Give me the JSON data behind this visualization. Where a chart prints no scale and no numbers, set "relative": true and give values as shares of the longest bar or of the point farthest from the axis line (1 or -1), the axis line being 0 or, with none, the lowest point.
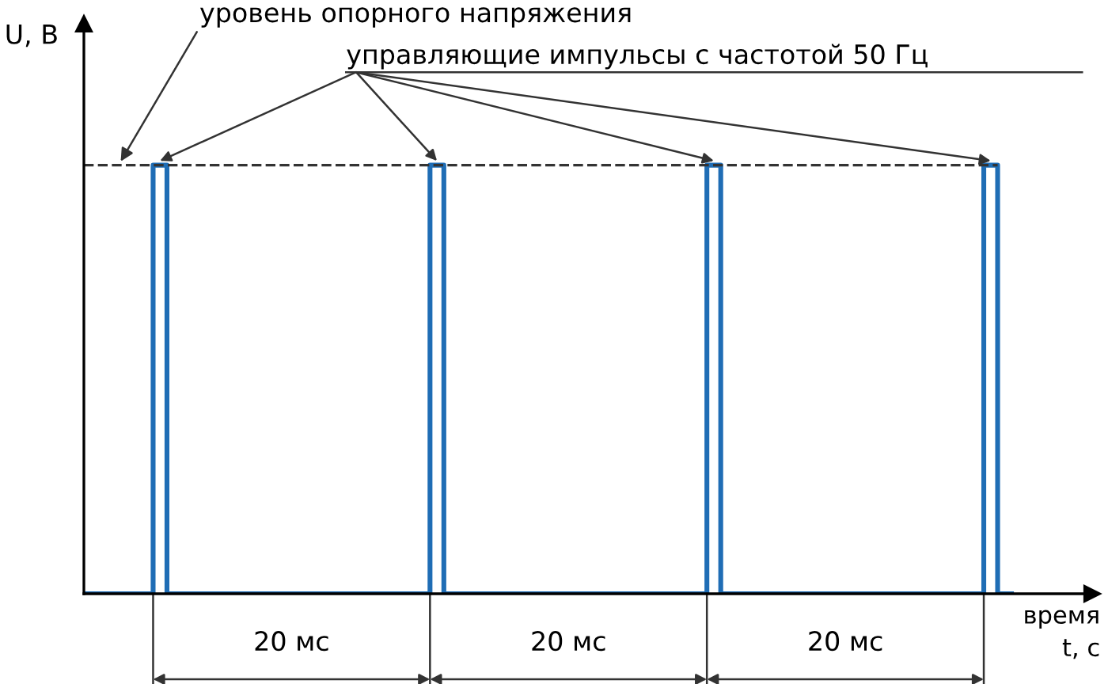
{
  "chart_data": {
    "type": "step",
    "relative": true,
    "xlabel": "время\nt, с",
    "ylabel": "U, В",
    "line_style": "solid",
    "categories": [
      null,
      null,
      null,
      null,
      null,
      null,
      null,
      null,
      null,
      null,
      null,
      null,
      null,
      null,
      null,
      null,
      null,
      null,
      null,
      null,
      null,
      null,
      null,
      null,
      null,
      null,
      null,
      null,
      null,
      null,
      null,
      null,
      null,
      null,
      null,
      null,
      null,
      null,
      null,
      null,
      null,
      null,
      null,
      null,
      null,
      null,
      null,
      null,
      null,
      null,
      null,
      null,
      null,
      null,
      null,
      null,
      null,
      null,
      null,
      null,
      null,
      null,
      null,
      null,
      null,
      null,
      null,
      null
    ],
    "series": [
      {
        "color": "#1f6db5",
        "values": [
          0,
          0,
          0,
          0,
          0,
          1,
          0,
          0,
          0,
          0,
          0,
          0,
          0,
          0,
          0,
          0,
          0,
          0,
          0,
          0,
          0,
          0,
          0,
          0,
          0,
          1,
          0,
          0,
          0,
          0,
          0,
          0,
          0,
          0,
          0,
          0,
          0,
          0,
          0,
          0,
          0,
          0,
          0,
          0,
          0,
          1,
          0,
          0,
          0,
          0,
          0,
          0,
          0,
          0,
          0,
          0,
          0,
          0,
          0,
          0,
          0,
          0,
          0,
          0,
          0,
          1,
          0,
          0
        ]
      }
    ],
    "ref_lines": [
      {
        "axis": "y",
        "value": 1,
        "label": "уровень опорного напряжения",
        "color": "#333333",
        "line_style": "dashed"
      }
    ],
    "annotations": [
      "управляющие импульсы с частотой 50 Гц",
      "20 мс",
      "20 мс",
      "20 мс"
    ]
  }
}
